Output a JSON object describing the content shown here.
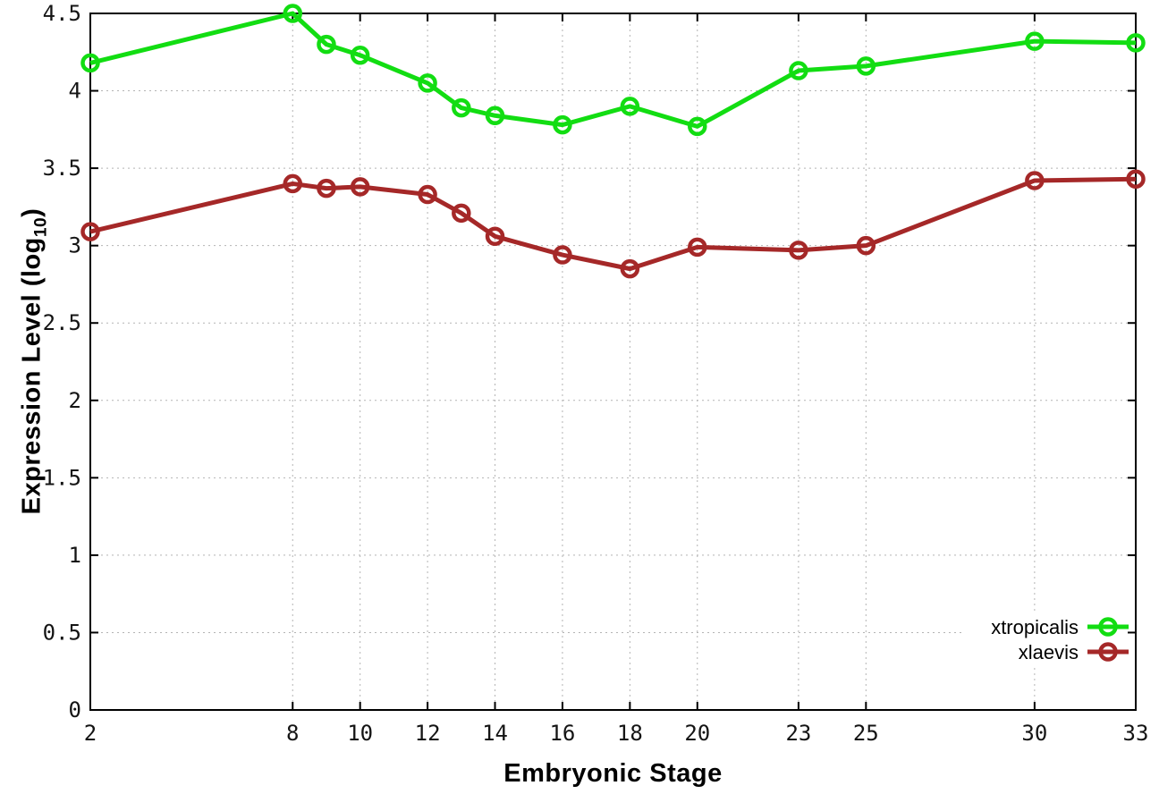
{
  "page": {
    "background": "#ffffff"
  },
  "chart_data": {
    "type": "line",
    "title": "",
    "xlabel": "Embryonic Stage",
    "ylabel": "Expression Level (log10)",
    "ylabel_parts": {
      "prefix": "Expression Level (log",
      "subscript": "10",
      "suffix": ")"
    },
    "x": [
      2,
      8,
      9,
      10,
      12,
      13,
      14,
      16,
      18,
      20,
      23,
      25,
      30,
      33
    ],
    "series": [
      {
        "name": "xtropicalis",
        "color": "#12dd12",
        "values": [
          4.18,
          4.5,
          4.3,
          4.23,
          4.05,
          3.89,
          3.84,
          3.78,
          3.9,
          3.77,
          4.13,
          4.16,
          4.32,
          4.31
        ]
      },
      {
        "name": "xlaevis",
        "color": "#a52828",
        "values": [
          3.09,
          3.4,
          3.37,
          3.38,
          3.33,
          3.21,
          3.06,
          2.94,
          2.85,
          2.99,
          2.97,
          3.0,
          3.42,
          3.43
        ]
      }
    ],
    "x_ticks": [
      2,
      8,
      10,
      12,
      14,
      16,
      18,
      20,
      23,
      25,
      30,
      33
    ],
    "x_tick_labels": [
      "2",
      "8",
      "10",
      "12",
      "14",
      "16",
      "18",
      "20",
      "23",
      "25",
      "30",
      "33"
    ],
    "y_ticks": [
      0,
      0.5,
      1,
      1.5,
      2,
      2.5,
      3,
      3.5,
      4,
      4.5
    ],
    "y_tick_labels": [
      "0",
      "0.5",
      "1",
      "1.5",
      "2",
      "2.5",
      "3",
      "3.5",
      "4",
      "4.5"
    ],
    "xlim": [
      2,
      33
    ],
    "ylim": [
      0,
      4.5
    ],
    "grid": true,
    "grid_color": "#b4b4b4",
    "axis_color": "#000000",
    "marker": "open-circle",
    "legend": {
      "position": "bottom-right-inside",
      "entries": [
        "xtropicalis",
        "xlaevis"
      ]
    }
  }
}
